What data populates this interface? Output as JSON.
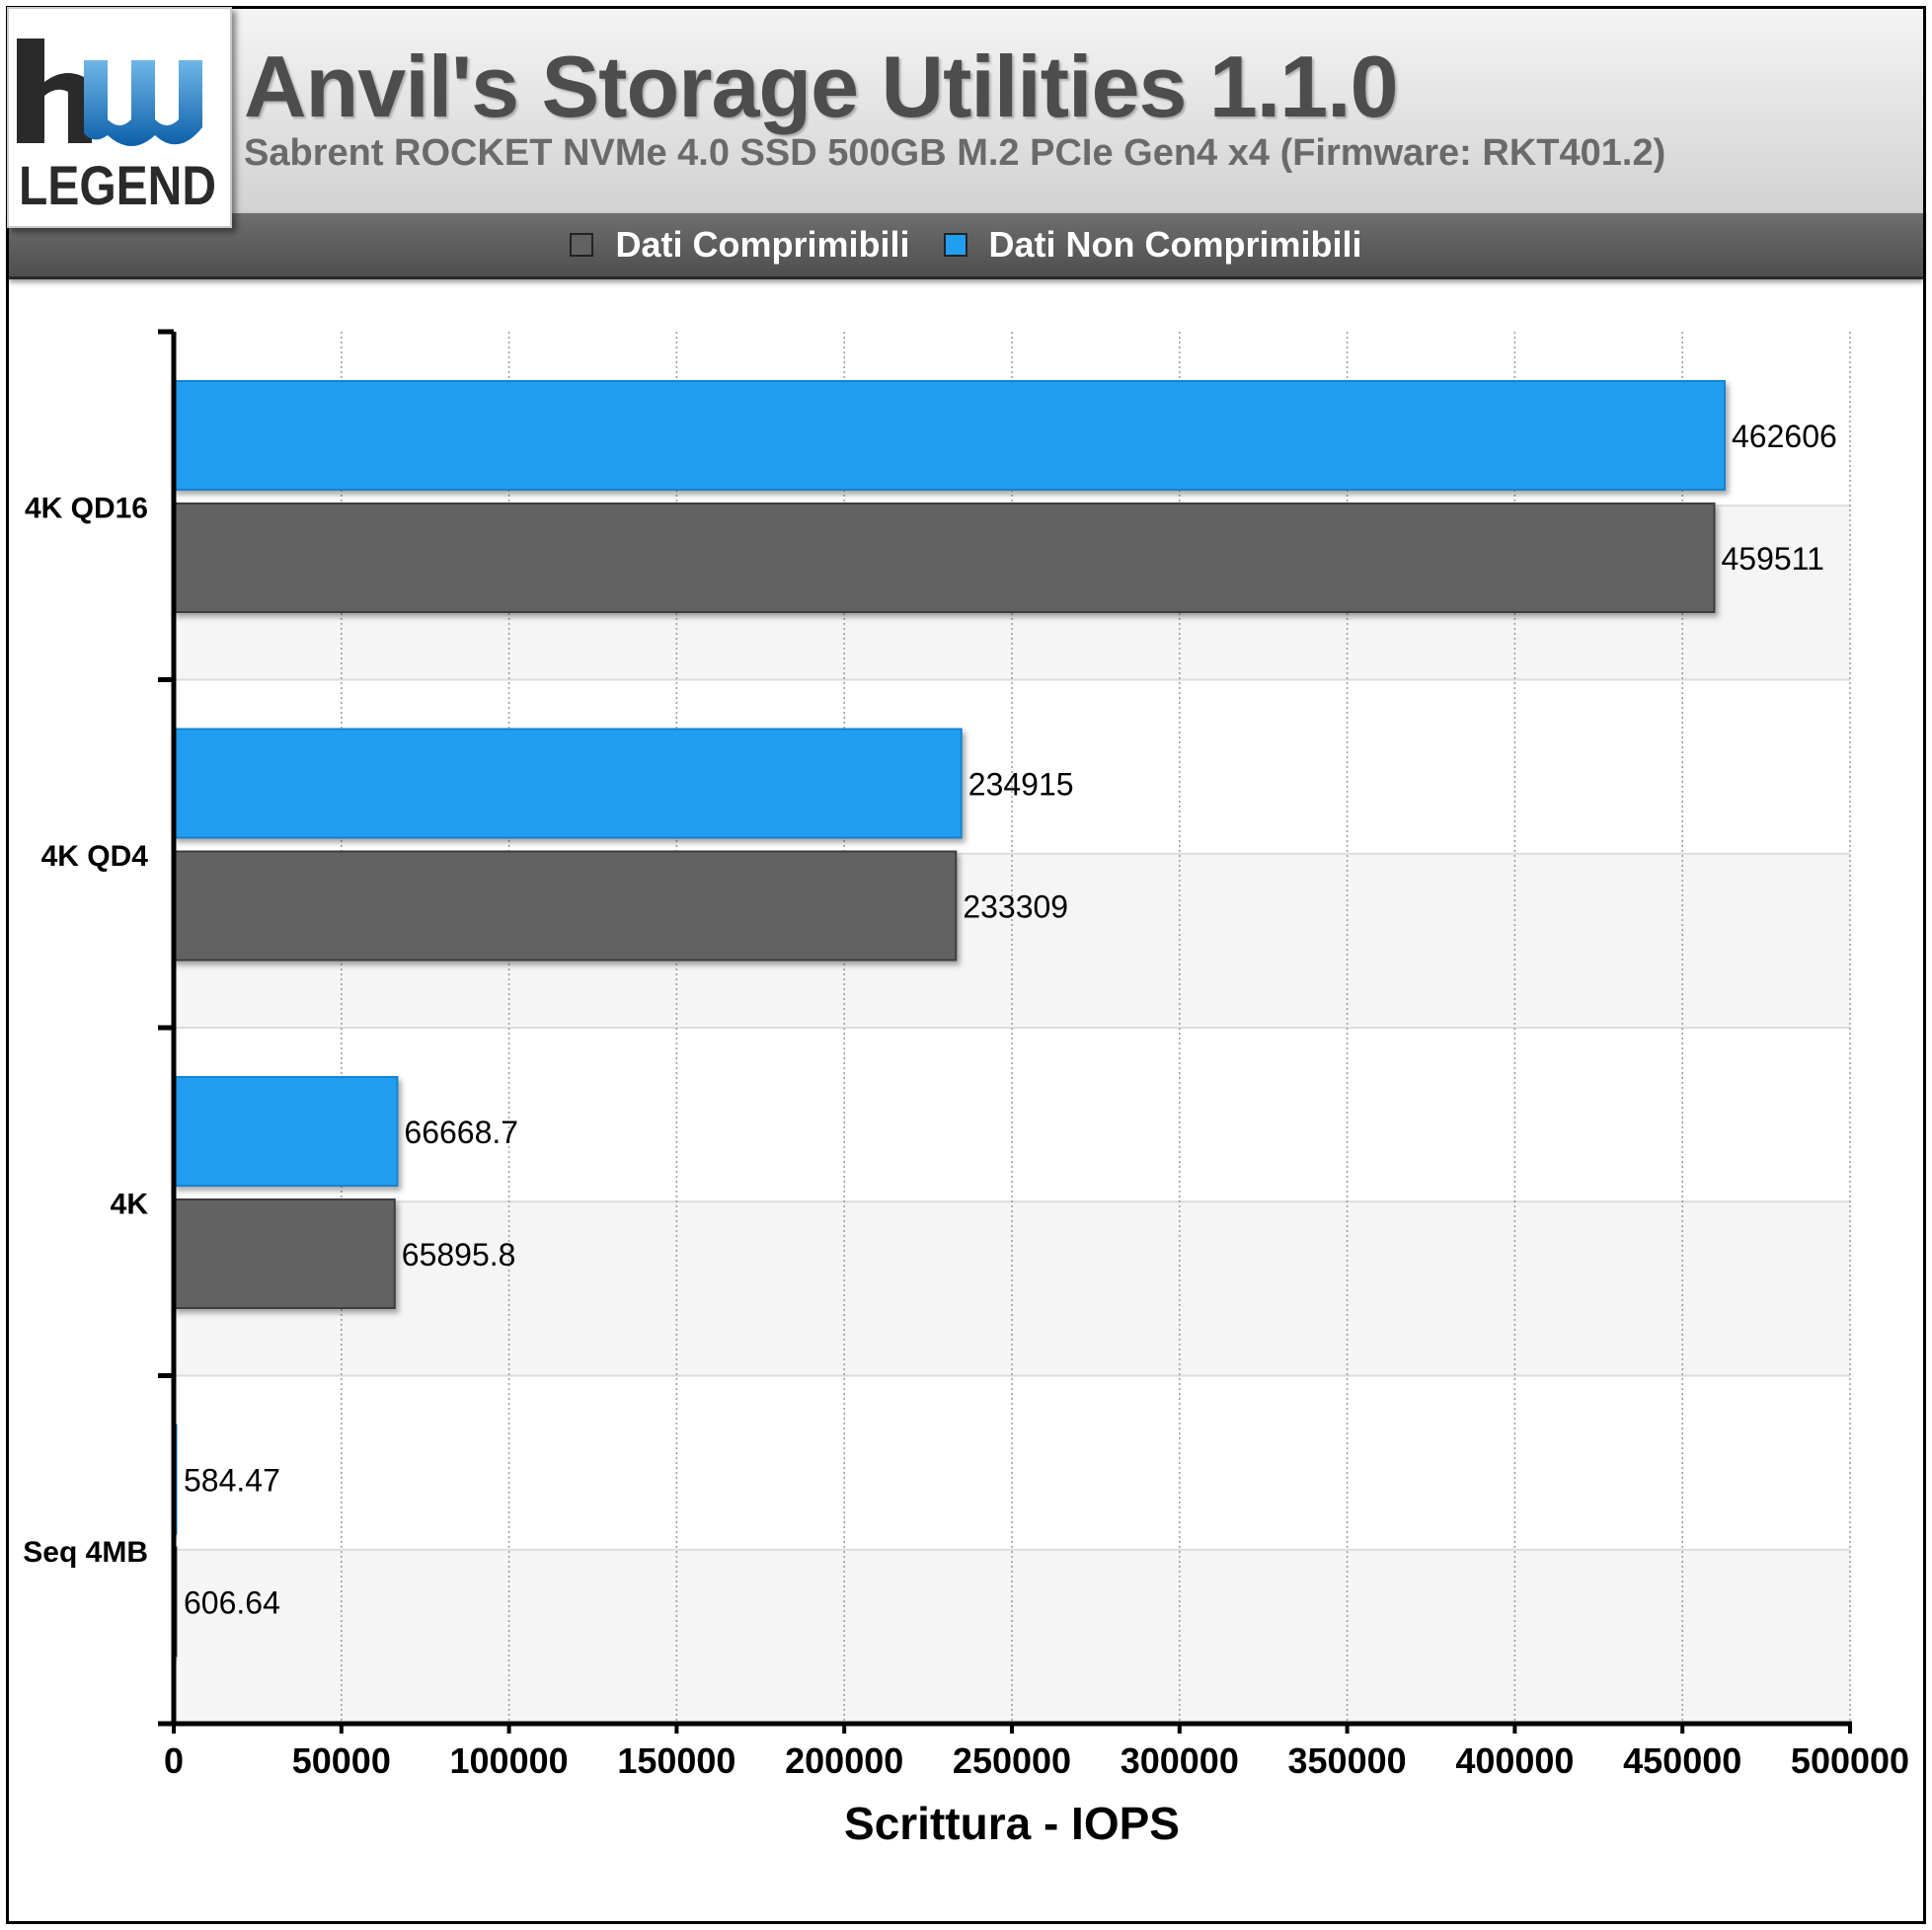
{
  "header": {
    "logo_text": "hw LEGEND",
    "title": "Anvil's Storage Utilities 1.1.0",
    "subtitle": "Sabrent ROCKET NVMe 4.0 SSD 500GB M.2 PCIe Gen4 x4 (Firmware: RKT401.2)"
  },
  "legend": {
    "items": [
      {
        "label": "Dati Comprimibili",
        "color": "#626262"
      },
      {
        "label": "Dati Non Comprimibili",
        "color": "#209ef0"
      }
    ]
  },
  "chart_data": {
    "type": "bar",
    "orientation": "horizontal",
    "categories": [
      "4K QD16",
      "4K QD4",
      "4K",
      "Seq 4MB"
    ],
    "series": [
      {
        "name": "Dati Non Comprimibili",
        "color": "#209ef0",
        "values": [
          462606,
          234915,
          66668.7,
          584.47
        ],
        "labels": [
          "462606",
          "234915",
          "66668.7",
          "584.47"
        ]
      },
      {
        "name": "Dati Comprimibili",
        "color": "#626262",
        "values": [
          459511,
          233309,
          65895.8,
          606.64
        ],
        "labels": [
          "459511",
          "233309",
          "65895.8",
          "606.64"
        ]
      }
    ],
    "xlabel": "Scrittura - IOPS",
    "xlim": [
      0,
      500000
    ],
    "xticks": [
      "0",
      "50000",
      "100000",
      "150000",
      "200000",
      "250000",
      "300000",
      "350000",
      "400000",
      "450000",
      "500000"
    ],
    "grid": true,
    "legend_position": "top-center"
  }
}
